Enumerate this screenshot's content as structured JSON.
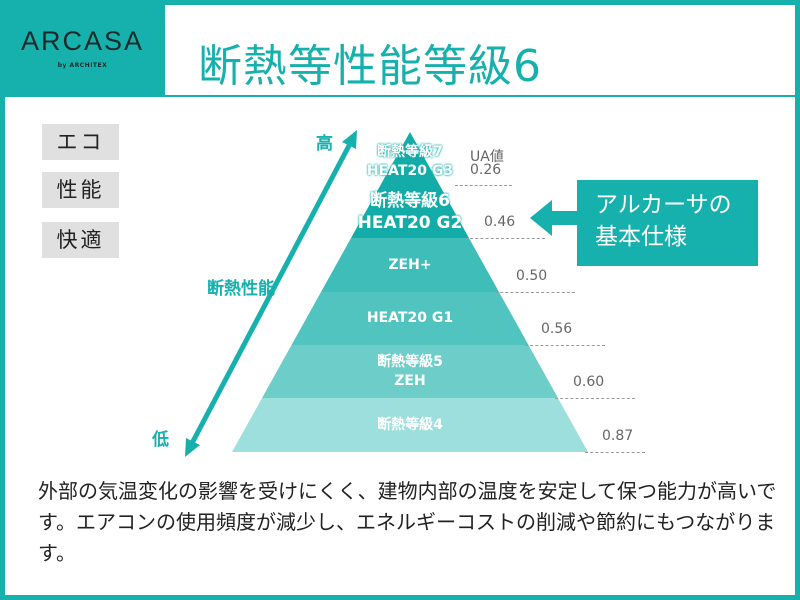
{
  "logo": {
    "brand": "ARCASA",
    "sub": "by ARCHITEX"
  },
  "title": "断熱等性能等級6",
  "tags": [
    "エコ",
    "性能",
    "快適"
  ],
  "axis": {
    "label": "断熱性能",
    "high": "高",
    "low": "低"
  },
  "ua_header": "UA値",
  "levels": [
    {
      "line1": "断熱等級7",
      "line2": "HEAT20 G3",
      "ua": "0.26",
      "color": "#14aca8"
    },
    {
      "line1": "断熱等級6",
      "line2": "HEAT20 G2",
      "ua": "0.46",
      "color": "#14aca8"
    },
    {
      "line1": "ZEH+",
      "line2": "",
      "ua": "0.50",
      "color": "#3ebdb9"
    },
    {
      "line1": "HEAT20 G1",
      "line2": "",
      "ua": "0.56",
      "color": "#52c4c0"
    },
    {
      "line1": "断熱等級5",
      "line2": "ZEH",
      "ua": "0.60",
      "color": "#6ccdc9"
    },
    {
      "line1": "断熱等級4",
      "line2": "",
      "ua": "0.87",
      "color": "#9ddfdc"
    }
  ],
  "callout": {
    "line1": "アルカーサの",
    "line2": "基本仕様"
  },
  "body": "外部の気温変化の影響を受けにくく、建物内部の温度を安定して保つ能力が高いです。エアコンの使用頻度が減少し、エネルギーコストの削減や節約にもつながります。",
  "colors": {
    "brand": "#17b1ad",
    "tag_bg": "#e0e0e0"
  }
}
